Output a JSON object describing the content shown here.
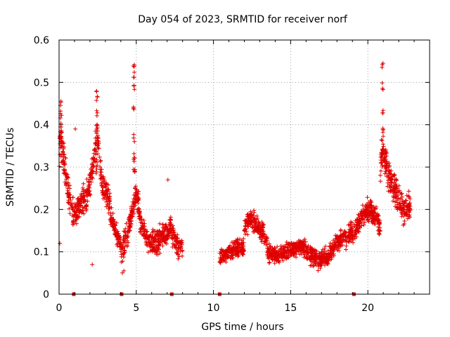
{
  "chart_data": {
    "type": "scatter",
    "title": "Day 054 of 2023, SRMTID for receiver norf",
    "xlabel": "GPS time / hours",
    "ylabel": "SRMTID / TECUs",
    "xlim": [
      0,
      24
    ],
    "ylim": [
      0,
      0.6
    ],
    "x_ticks": [
      0,
      5,
      10,
      15,
      20
    ],
    "x_tick_labels": [
      "0",
      "5",
      "10",
      "15",
      "20"
    ],
    "y_ticks": [
      0,
      0.1,
      0.2,
      0.3,
      0.4,
      0.5,
      0.6
    ],
    "y_tick_labels": [
      "0",
      "0.1",
      "0.2",
      "0.3",
      "0.4",
      "0.5",
      "0.6"
    ],
    "grid": true,
    "marker": "+",
    "color": "#e00000",
    "series": [
      {
        "name": "SRMTID",
        "segments": [
          {
            "x_start": 0.0,
            "x_end": 0.9,
            "profile": [
              [
                0.0,
                0.3
              ],
              [
                0.1,
                0.4
              ],
              [
                0.3,
                0.32
              ],
              [
                0.6,
                0.24
              ],
              [
                0.9,
                0.2
              ]
            ],
            "spread": 0.05
          },
          {
            "x_start": 0.9,
            "x_end": 3.3,
            "profile": [
              [
                0.9,
                0.18
              ],
              [
                1.3,
                0.21
              ],
              [
                1.8,
                0.23
              ],
              [
                2.2,
                0.3
              ],
              [
                2.5,
                0.38
              ],
              [
                2.8,
                0.25
              ],
              [
                3.1,
                0.24
              ],
              [
                3.3,
                0.22
              ]
            ],
            "spread": 0.045
          },
          {
            "x_start": 3.3,
            "x_end": 4.0,
            "profile": [
              [
                3.3,
                0.19
              ],
              [
                3.6,
                0.15
              ],
              [
                4.0,
                0.12
              ]
            ],
            "spread": 0.03
          },
          {
            "x_start": 4.0,
            "x_end": 5.6,
            "profile": [
              [
                4.0,
                0.1
              ],
              [
                4.4,
                0.14
              ],
              [
                4.8,
                0.2
              ],
              [
                5.0,
                0.24
              ],
              [
                5.3,
                0.17
              ],
              [
                5.6,
                0.14
              ]
            ],
            "spread": 0.04
          },
          {
            "x_start": 5.6,
            "x_end": 8.0,
            "profile": [
              [
                5.6,
                0.13
              ],
              [
                6.3,
                0.12
              ],
              [
                6.8,
                0.14
              ],
              [
                7.2,
                0.16
              ],
              [
                7.6,
                0.12
              ],
              [
                8.0,
                0.11
              ]
            ],
            "spread": 0.04
          },
          {
            "x_start": 10.4,
            "x_end": 12.0,
            "profile": [
              [
                10.4,
                0.08
              ],
              [
                11.0,
                0.1
              ],
              [
                11.6,
                0.11
              ],
              [
                12.0,
                0.11
              ]
            ],
            "spread": 0.03
          },
          {
            "x_start": 12.0,
            "x_end": 13.5,
            "profile": [
              [
                12.0,
                0.16
              ],
              [
                12.4,
                0.18
              ],
              [
                12.8,
                0.16
              ],
              [
                13.3,
                0.14
              ],
              [
                13.5,
                0.12
              ]
            ],
            "spread": 0.035
          },
          {
            "x_start": 13.5,
            "x_end": 16.0,
            "profile": [
              [
                13.5,
                0.1
              ],
              [
                14.2,
                0.09
              ],
              [
                14.8,
                0.1
              ],
              [
                15.4,
                0.11
              ],
              [
                16.0,
                0.11
              ]
            ],
            "spread": 0.03
          },
          {
            "x_start": 16.0,
            "x_end": 18.5,
            "profile": [
              [
                16.0,
                0.1
              ],
              [
                16.8,
                0.08
              ],
              [
                17.5,
                0.09
              ],
              [
                18.0,
                0.12
              ],
              [
                18.5,
                0.14
              ]
            ],
            "spread": 0.03
          },
          {
            "x_start": 18.5,
            "x_end": 20.8,
            "profile": [
              [
                18.5,
                0.13
              ],
              [
                19.2,
                0.15
              ],
              [
                19.7,
                0.19
              ],
              [
                20.2,
                0.2
              ],
              [
                20.5,
                0.18
              ],
              [
                20.8,
                0.16
              ]
            ],
            "spread": 0.035
          },
          {
            "x_start": 20.8,
            "x_end": 22.8,
            "profile": [
              [
                20.8,
                0.3
              ],
              [
                21.0,
                0.34
              ],
              [
                21.3,
                0.28
              ],
              [
                21.8,
                0.24
              ],
              [
                22.3,
                0.2
              ],
              [
                22.8,
                0.21
              ]
            ],
            "spread": 0.05
          }
        ],
        "peaks": [
          {
            "x": 0.12,
            "y": [
              0.43,
              0.46
            ]
          },
          {
            "x": 2.45,
            "y": [
              0.4,
              0.44,
              0.47,
              0.49
            ]
          },
          {
            "x": 4.85,
            "y": [
              0.38,
              0.45,
              0.5,
              0.53,
              0.55
            ]
          },
          {
            "x": 20.95,
            "y": [
              0.44,
              0.5,
              0.55
            ]
          }
        ],
        "outliers": [
          {
            "x": 0.05,
            "y": 0.12
          },
          {
            "x": 1.05,
            "y": 0.39
          },
          {
            "x": 2.15,
            "y": 0.07
          },
          {
            "x": 4.1,
            "y": 0.05
          },
          {
            "x": 4.2,
            "y": 0.055
          },
          {
            "x": 7.05,
            "y": 0.27
          }
        ]
      }
    ],
    "zero_markers_x": [
      0.95,
      4.05,
      7.3,
      10.4,
      19.1
    ]
  }
}
